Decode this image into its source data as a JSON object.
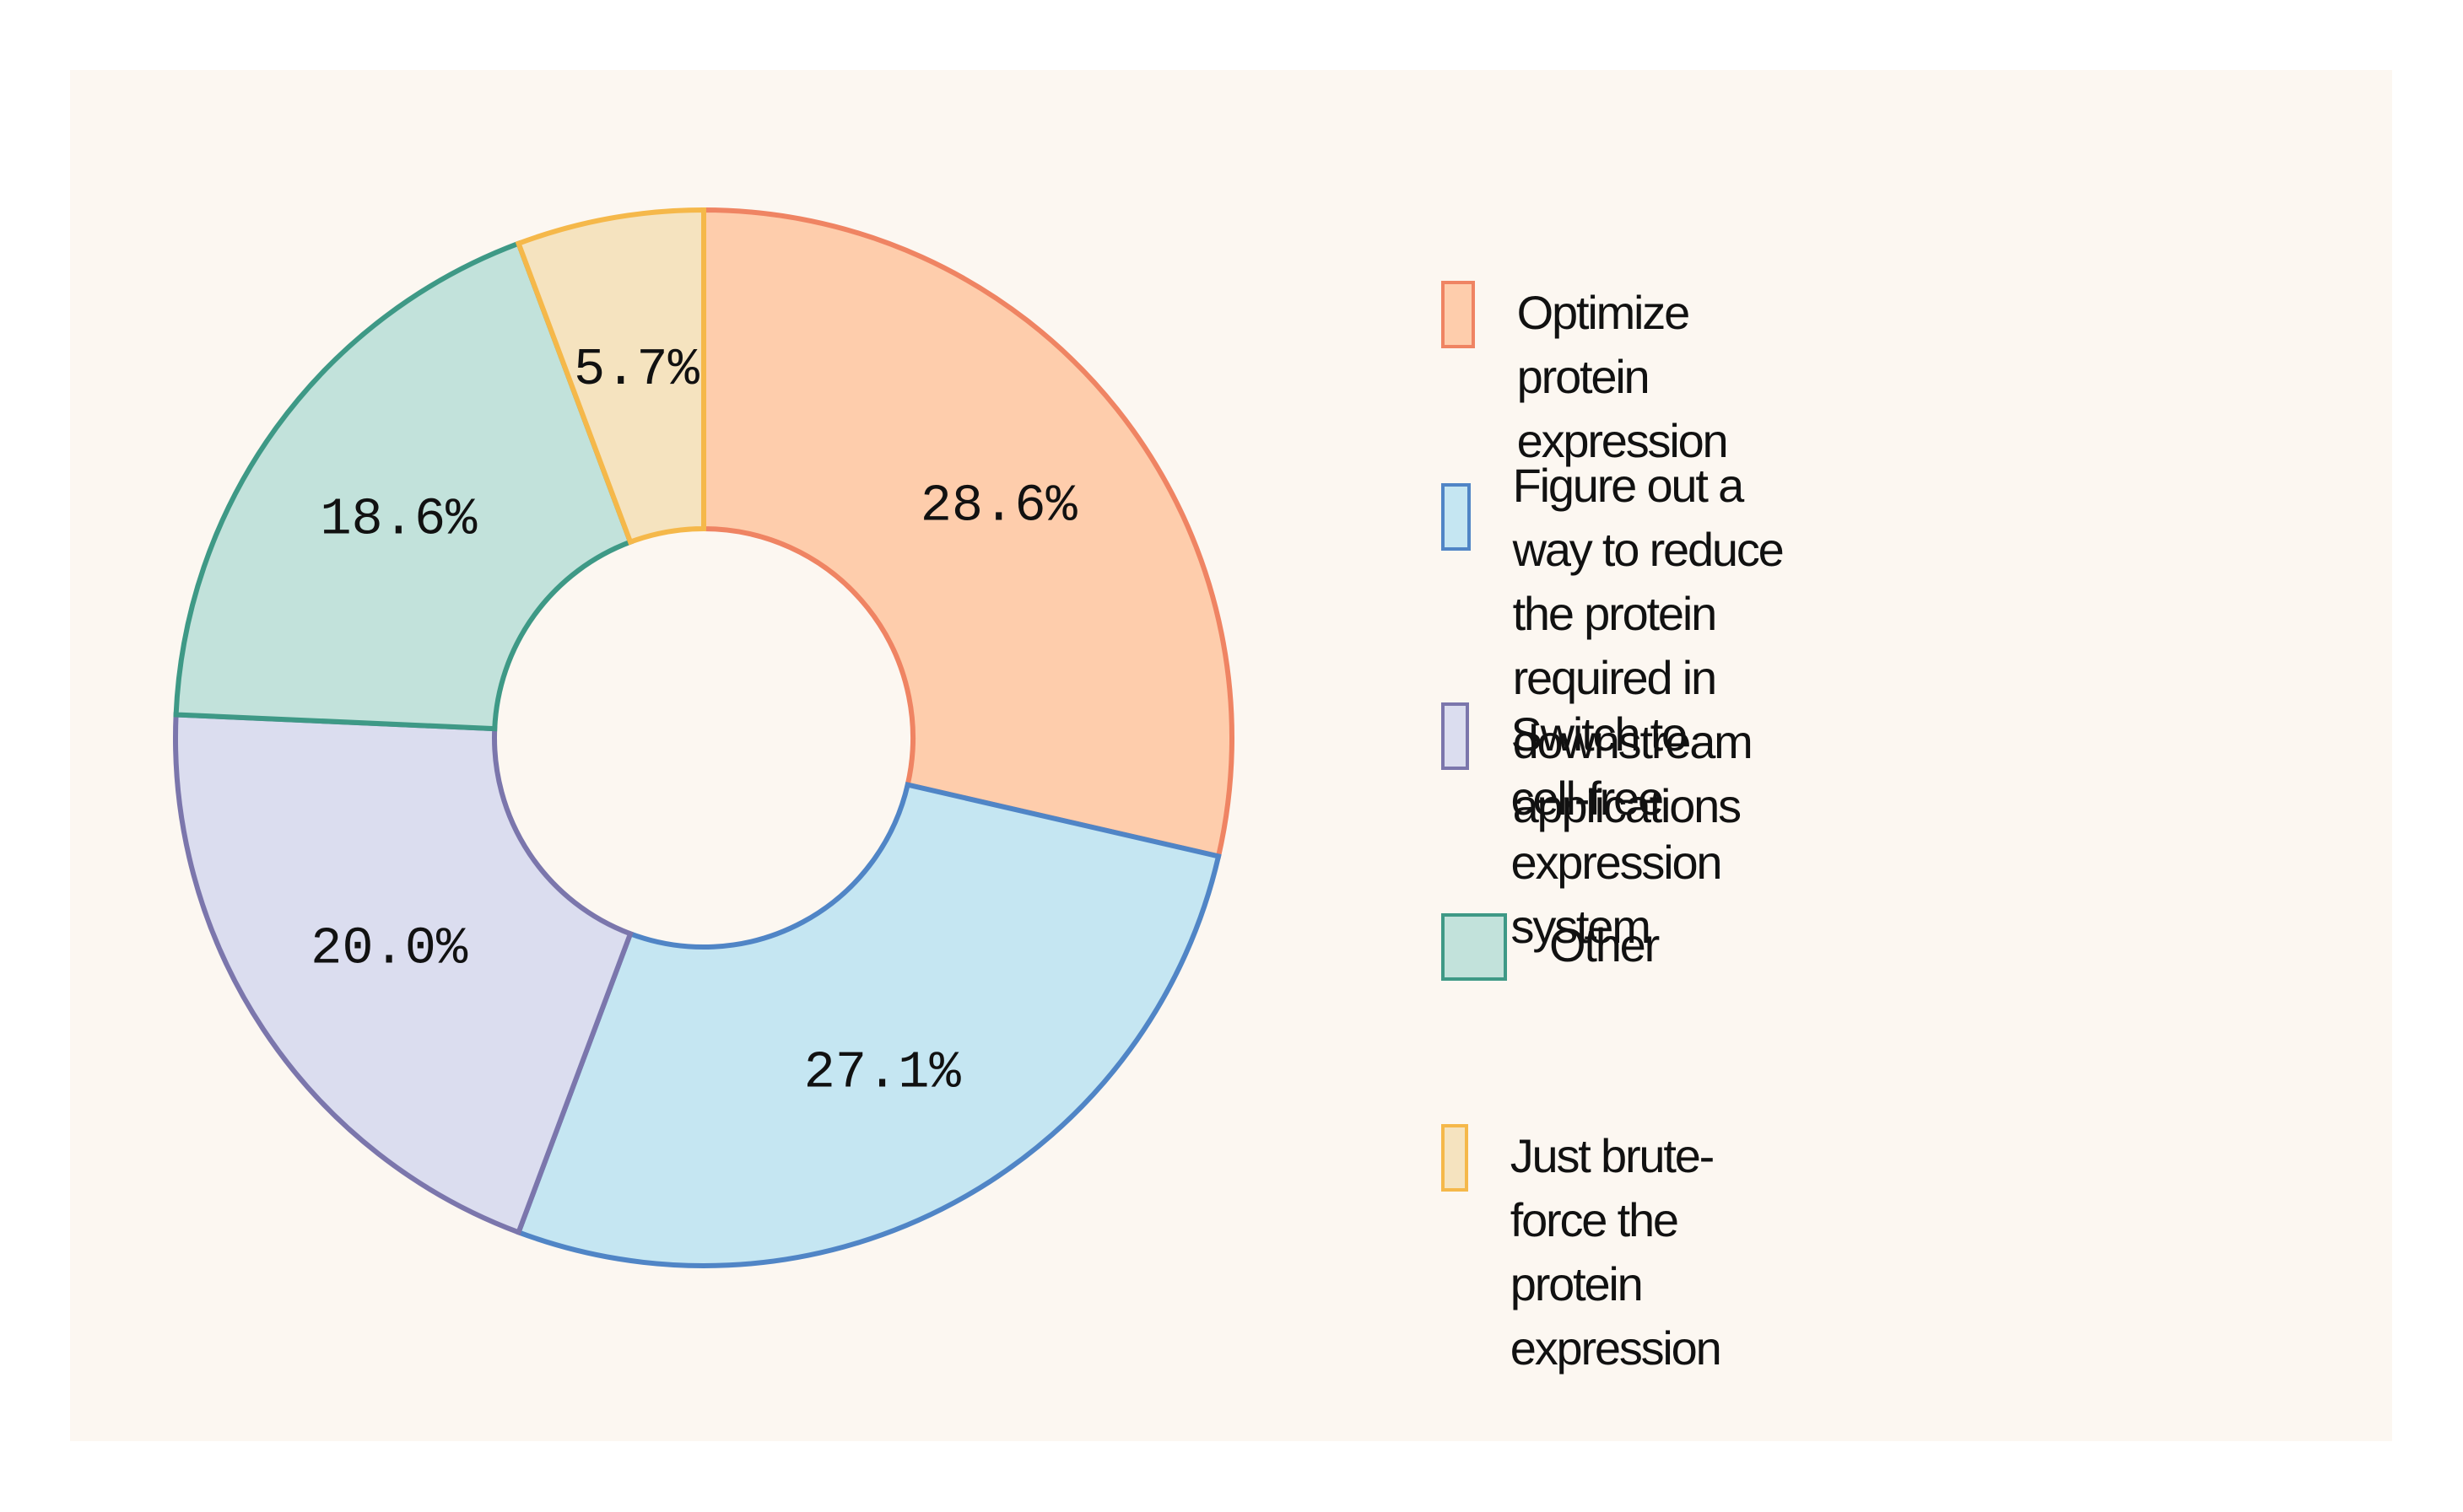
{
  "chart_data": {
    "type": "pie",
    "variant": "donut",
    "title": "",
    "categories": [
      "Optimize protein expression",
      "Figure out a way to reduce the protein required in downstream applications",
      "Switch to cell-free expression system",
      "Other",
      "Just brute-force the protein expression"
    ],
    "values": [
      28.6,
      27.1,
      20.0,
      18.6,
      5.7
    ],
    "labels": [
      "28.6%",
      "27.1%",
      "20.0%",
      "18.6%",
      "5.7%"
    ],
    "start_angle": "12 o'clock",
    "direction": "clockwise",
    "legend_position": "right",
    "colors": {
      "fill": [
        "#fecdac",
        "#c5e6f2",
        "#dbddef",
        "#c2e2db",
        "#f5e3bf"
      ],
      "stroke": [
        "#ef8463",
        "#5085c6",
        "#7b76ac",
        "#3e9986",
        "#f5b84a"
      ]
    }
  },
  "legend": {
    "items": [
      {
        "label": "Optimize protein expression"
      },
      {
        "label": "Figure out a way to reduce the protein\nrequired in downstream applications"
      },
      {
        "label": "Switch to cell-free expression system"
      },
      {
        "label": "Other"
      },
      {
        "label": "Just brute-force the protein expression"
      }
    ]
  },
  "colors": {
    "background": "#ffffff",
    "panel": "#fcf7f1",
    "text": "#111111"
  }
}
